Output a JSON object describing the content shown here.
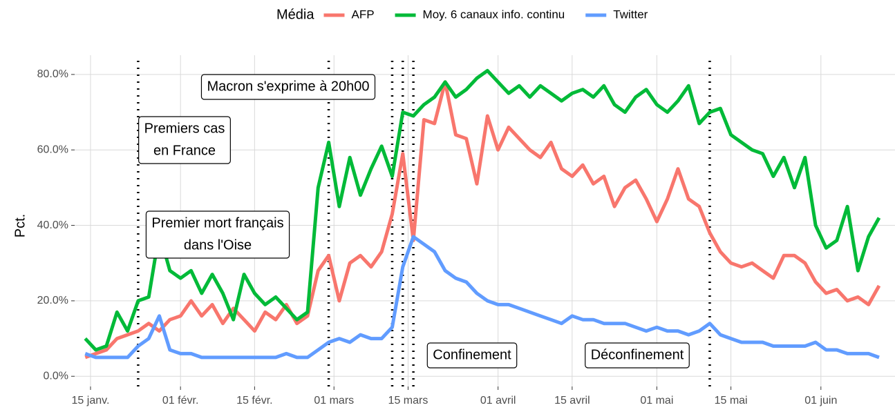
{
  "chart_data": {
    "type": "line",
    "legend_title": "Média",
    "y_label": "Pct.",
    "x": [
      "01-14",
      "01-16",
      "01-18",
      "01-20",
      "01-22",
      "01-24",
      "01-26",
      "01-28",
      "01-30",
      "02-01",
      "02-03",
      "02-05",
      "02-07",
      "02-09",
      "02-11",
      "02-13",
      "02-15",
      "02-17",
      "02-19",
      "02-21",
      "02-23",
      "02-25",
      "02-27",
      "02-29",
      "03-02",
      "03-04",
      "03-06",
      "03-08",
      "03-10",
      "03-12",
      "03-14",
      "03-16",
      "03-18",
      "03-20",
      "03-22",
      "03-24",
      "03-26",
      "03-28",
      "03-30",
      "04-01",
      "04-03",
      "04-05",
      "04-07",
      "04-09",
      "04-11",
      "04-13",
      "04-15",
      "04-17",
      "04-19",
      "04-21",
      "04-23",
      "04-25",
      "04-27",
      "04-29",
      "05-01",
      "05-03",
      "05-05",
      "05-07",
      "05-09",
      "05-11",
      "05-13",
      "05-15",
      "05-17",
      "05-19",
      "05-21",
      "05-23",
      "05-25",
      "05-27",
      "05-29",
      "05-31",
      "06-02",
      "06-04",
      "06-06",
      "06-08",
      "06-10",
      "06-12"
    ],
    "series": [
      {
        "name": "AFP",
        "color": "#f8766d",
        "values": [
          5,
          6,
          7,
          10,
          11,
          12,
          14,
          12,
          15,
          16,
          20,
          16,
          19,
          14,
          18,
          15,
          12,
          17,
          15,
          19,
          14,
          16,
          28,
          32,
          20,
          30,
          32,
          29,
          33,
          43,
          59,
          36,
          68,
          67,
          78,
          64,
          63,
          51,
          69,
          60,
          66,
          63,
          60,
          58,
          62,
          55,
          53,
          56,
          51,
          53,
          45,
          50,
          52,
          47,
          41,
          47,
          55,
          47,
          45,
          38,
          33,
          30,
          29,
          30,
          28,
          26,
          32,
          32,
          30,
          25,
          22,
          23,
          20,
          21,
          19,
          24
        ]
      },
      {
        "name": "Moy. 6 canaux info. continu",
        "color": "#00ba38",
        "values": [
          10,
          7,
          8,
          17,
          12,
          20,
          21,
          38,
          28,
          26,
          28,
          22,
          27,
          22,
          15,
          27,
          22,
          19,
          21,
          18,
          15,
          17,
          50,
          62,
          45,
          58,
          48,
          55,
          61,
          53,
          70,
          69,
          72,
          74,
          78,
          74,
          76,
          79,
          81,
          78,
          75,
          77,
          74,
          77,
          75,
          73,
          75,
          76,
          74,
          77,
          72,
          70,
          74,
          76,
          72,
          70,
          73,
          77,
          67,
          70,
          71,
          64,
          62,
          60,
          59,
          53,
          58,
          50,
          58,
          40,
          34,
          36,
          45,
          28,
          37,
          42
        ]
      },
      {
        "name": "Twitter",
        "color": "#619cff",
        "values": [
          6,
          5,
          5,
          5,
          5,
          8,
          10,
          16,
          7,
          6,
          6,
          5,
          5,
          5,
          5,
          5,
          5,
          5,
          5,
          6,
          5,
          5,
          7,
          9,
          10,
          9,
          11,
          10,
          10,
          13,
          29,
          37,
          35,
          33,
          28,
          26,
          25,
          22,
          20,
          19,
          19,
          18,
          17,
          16,
          15,
          14,
          16,
          15,
          15,
          14,
          14,
          14,
          13,
          12,
          13,
          12,
          12,
          11,
          12,
          14,
          11,
          10,
          9,
          9,
          9,
          8,
          8,
          8,
          8,
          9,
          7,
          7,
          6,
          6,
          6,
          5
        ]
      }
    ],
    "xlim": [
      "01-12",
      "06-15"
    ],
    "xticks": [
      {
        "value": "01-15",
        "label": "15 janv."
      },
      {
        "value": "02-01",
        "label": "01 févr."
      },
      {
        "value": "02-15",
        "label": "15 févr."
      },
      {
        "value": "03-01",
        "label": "01 mars"
      },
      {
        "value": "03-15",
        "label": "15 mars"
      },
      {
        "value": "04-01",
        "label": "01 avril"
      },
      {
        "value": "04-15",
        "label": "15 avril"
      },
      {
        "value": "05-01",
        "label": "01 mai"
      },
      {
        "value": "05-15",
        "label": "15 mai"
      },
      {
        "value": "06-01",
        "label": "01 juin"
      }
    ],
    "ylim": [
      -2.7,
      85.1
    ],
    "yticks": [
      {
        "value": 0,
        "label": "0.0%"
      },
      {
        "value": 20,
        "label": "20.0%"
      },
      {
        "value": 40,
        "label": "40.0%"
      },
      {
        "value": 60,
        "label": "60.0%"
      },
      {
        "value": 80,
        "label": "80.0%"
      }
    ],
    "grid": true,
    "event_lines": [
      "01-24",
      "02-29",
      "03-12",
      "03-14",
      "03-16",
      "05-11"
    ],
    "annotations": [
      {
        "lines": [
          "Macron s'exprime à 20h00"
        ]
      },
      {
        "lines": [
          "Premiers cas",
          "en France"
        ]
      },
      {
        "lines": [
          "Premier mort français",
          "dans l'Oise"
        ]
      },
      {
        "lines": [
          "Confinement"
        ]
      },
      {
        "lines": [
          "Déconfinement"
        ]
      }
    ]
  }
}
